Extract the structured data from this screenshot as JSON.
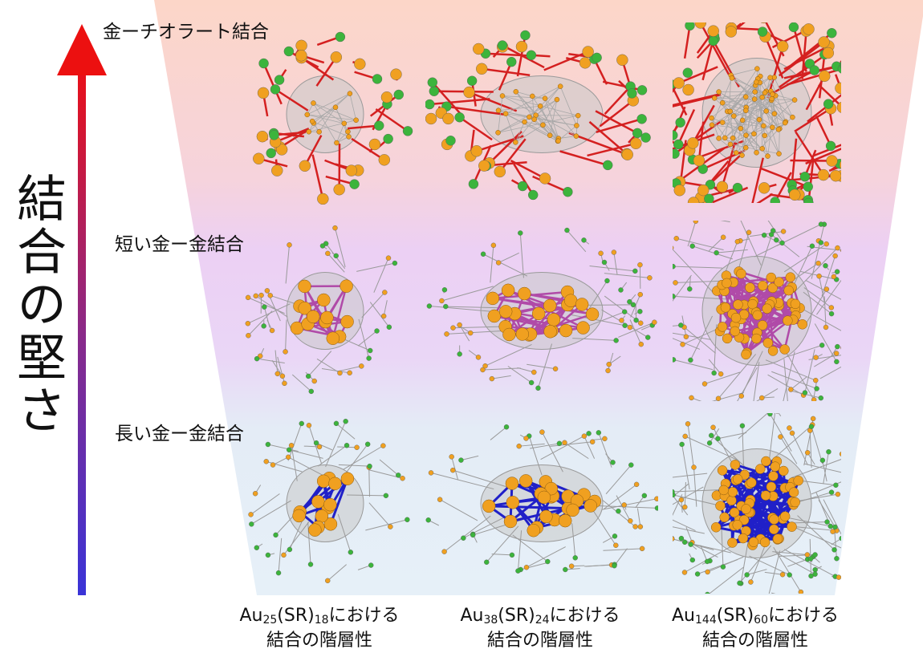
{
  "axis": {
    "label": "結合の堅さ",
    "gradient_top_color": "#e8101a",
    "gradient_bottom_color": "#3a34d8"
  },
  "rows": [
    {
      "label": "金ーチオラート結合",
      "bond_color": "#d42020",
      "band_color": "#fbd9cc"
    },
    {
      "label": "短い金ー金結合",
      "bond_color": "#b04aa8",
      "band_color": "#ecd0f4"
    },
    {
      "label": "長い金ー金結合",
      "bond_color": "#2020c8",
      "band_color": "#e2eef6"
    }
  ],
  "columns": [
    {
      "formula": {
        "a": "Au",
        "n1": "25",
        "b": "(SR)",
        "n2": "18",
        "suffix": "における"
      },
      "line2": "結合の階層性"
    },
    {
      "formula": {
        "a": "Au",
        "n1": "38",
        "b": "(SR)",
        "n2": "24",
        "suffix": "における"
      },
      "line2": "結合の階層性"
    },
    {
      "formula": {
        "a": "Au",
        "n1": "144",
        "b": "(SR)",
        "n2": "60",
        "suffix": "における"
      },
      "line2": "結合の階層性"
    }
  ],
  "atom_colors": {
    "gold": "#f0a020",
    "sulfur": "#3cb43c"
  }
}
